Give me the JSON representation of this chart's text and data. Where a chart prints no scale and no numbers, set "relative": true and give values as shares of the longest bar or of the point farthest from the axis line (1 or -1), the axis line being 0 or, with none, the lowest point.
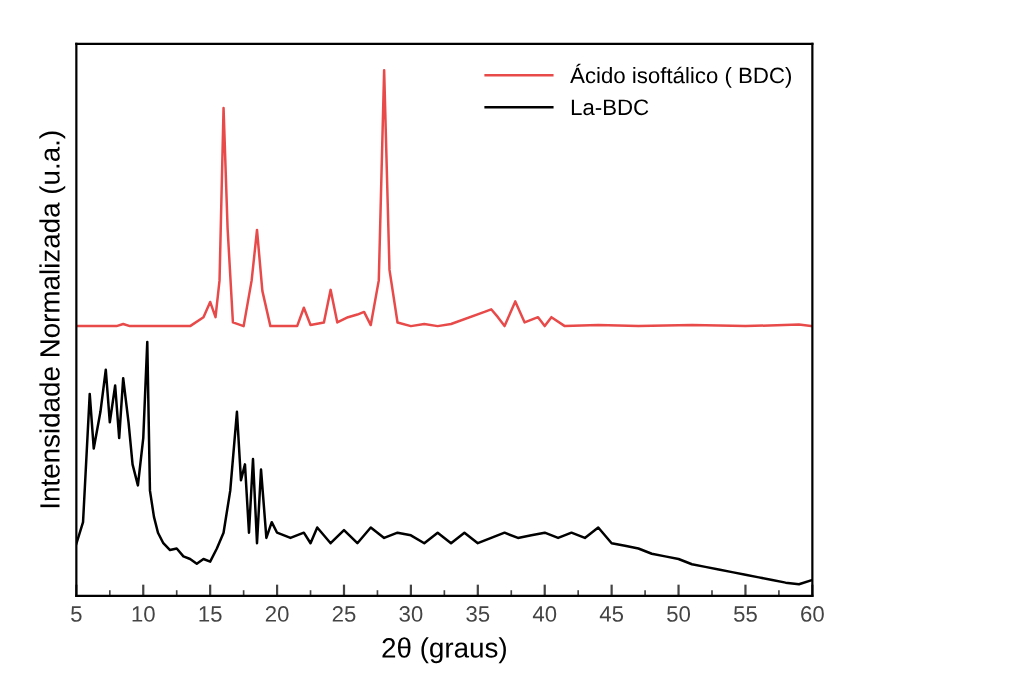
{
  "chart_data": {
    "type": "line",
    "relative": true,
    "xlabel": "2θ (graus)",
    "ylabel": "Intensidade Normalizada (u.a.)",
    "xlim": [
      5,
      60
    ],
    "xticks": [
      5,
      10,
      15,
      20,
      25,
      30,
      35,
      40,
      45,
      50,
      55,
      60
    ],
    "legend": "top right",
    "line_style": "solid",
    "series": [
      {
        "name": "Ácido isoftálico ( BDC)",
        "color": "#e84a4a",
        "x": [
          5,
          8,
          8.5,
          9,
          13.5,
          14.5,
          15,
          15.4,
          15.7,
          16,
          16.3,
          16.7,
          17.5,
          18.1,
          18.5,
          18.9,
          19.5,
          21.5,
          22,
          22.5,
          23.5,
          24,
          24.5,
          25.3,
          26,
          26.5,
          27,
          27.6,
          28,
          28.4,
          29,
          30,
          31,
          32,
          33,
          35.5,
          36,
          36.5,
          37,
          37.8,
          38.5,
          39.5,
          40,
          40.5,
          41.5,
          44,
          47,
          51,
          55,
          59,
          60
        ],
        "values": [
          0.513,
          0.513,
          0.517,
          0.513,
          0.513,
          0.53,
          0.559,
          0.53,
          0.6,
          0.928,
          0.7,
          0.52,
          0.513,
          0.6,
          0.696,
          0.58,
          0.513,
          0.513,
          0.548,
          0.515,
          0.52,
          0.582,
          0.52,
          0.53,
          0.535,
          0.54,
          0.515,
          0.6,
          1.0,
          0.62,
          0.52,
          0.513,
          0.517,
          0.513,
          0.517,
          0.54,
          0.545,
          0.53,
          0.513,
          0.56,
          0.52,
          0.53,
          0.513,
          0.53,
          0.513,
          0.515,
          0.513,
          0.515,
          0.513,
          0.516,
          0.513
        ]
      },
      {
        "name": "La-BDC",
        "color": "#000000",
        "x": [
          5,
          5.5,
          6,
          6.3,
          6.8,
          7.2,
          7.5,
          7.9,
          8.2,
          8.5,
          8.9,
          9.2,
          9.6,
          10,
          10.3,
          10.5,
          10.8,
          11.1,
          11.5,
          12,
          12.5,
          13,
          13.5,
          14,
          14.5,
          15,
          15.5,
          16,
          16.5,
          17,
          17.3,
          17.6,
          17.9,
          18.2,
          18.5,
          18.8,
          19.2,
          19.6,
          20,
          21,
          22,
          22.5,
          23,
          24,
          25,
          26,
          27,
          28,
          29,
          30,
          31,
          32,
          33,
          34,
          35,
          36,
          37,
          38,
          39,
          40,
          41,
          42,
          43,
          44,
          45,
          46,
          47,
          48,
          49,
          50,
          51,
          52,
          53,
          54,
          55,
          56,
          57,
          58,
          59,
          60
        ],
        "values": [
          0.099,
          0.14,
          0.384,
          0.28,
          0.35,
          0.43,
          0.33,
          0.4,
          0.3,
          0.414,
          0.33,
          0.25,
          0.21,
          0.3,
          0.483,
          0.2,
          0.15,
          0.12,
          0.1,
          0.087,
          0.09,
          0.075,
          0.07,
          0.061,
          0.07,
          0.065,
          0.09,
          0.12,
          0.2,
          0.35,
          0.22,
          0.25,
          0.12,
          0.26,
          0.1,
          0.24,
          0.11,
          0.14,
          0.12,
          0.11,
          0.12,
          0.1,
          0.13,
          0.1,
          0.125,
          0.1,
          0.13,
          0.11,
          0.12,
          0.115,
          0.1,
          0.12,
          0.1,
          0.12,
          0.1,
          0.11,
          0.12,
          0.11,
          0.115,
          0.12,
          0.11,
          0.12,
          0.11,
          0.13,
          0.1,
          0.095,
          0.09,
          0.08,
          0.075,
          0.07,
          0.06,
          0.055,
          0.05,
          0.045,
          0.04,
          0.035,
          0.03,
          0.025,
          0.022,
          0.03
        ]
      }
    ]
  }
}
